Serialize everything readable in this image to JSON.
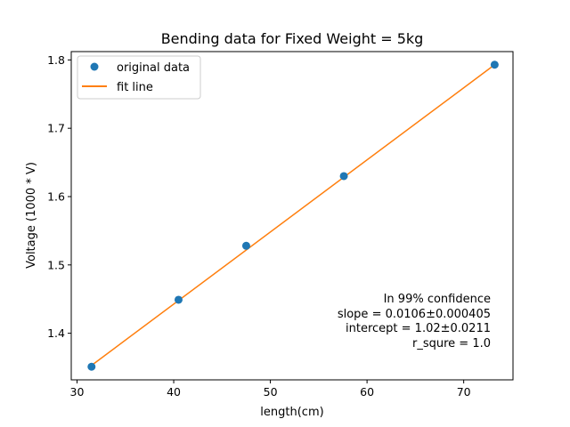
{
  "chart_data": {
    "type": "scatter",
    "title": "Bending data for Fixed Weight = 5kg",
    "xlabel": "length(cm)",
    "ylabel": "Voltage (1000 * V)",
    "xlim": [
      29.4,
      75.1
    ],
    "ylim": [
      1.3318,
      1.8122
    ],
    "xticks": [
      30,
      40,
      50,
      60,
      70
    ],
    "xtick_labels": [
      "30",
      "40",
      "50",
      "60",
      "70"
    ],
    "yticks": [
      1.4,
      1.5,
      1.6,
      1.7,
      1.8
    ],
    "ytick_labels": [
      "1.4",
      "1.5",
      "1.6",
      "1.7",
      "1.8"
    ],
    "grid": false,
    "legend_position": "top-left",
    "series": [
      {
        "name": "original data",
        "kind": "scatter",
        "color": "#1f77b4",
        "x": [
          31.5,
          40.5,
          47.5,
          57.6,
          73.2
        ],
        "y": [
          1.351,
          1.449,
          1.528,
          1.63,
          1.793
        ]
      },
      {
        "name": "fit line",
        "kind": "line",
        "color": "#ff7f0e",
        "x": [
          31.5,
          73.2
        ],
        "y": [
          1.353,
          1.793
        ]
      }
    ],
    "annotation": [
      "In 99% confidence",
      "slope = 0.0106±0.000405",
      "intercept = 1.02±0.0211",
      "r_squre = 1.0"
    ]
  }
}
